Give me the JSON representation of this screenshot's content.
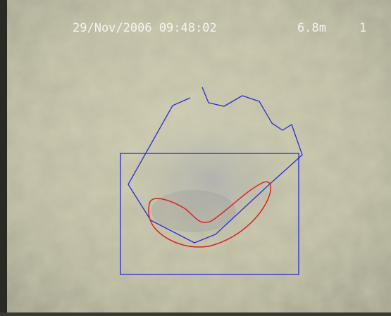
{
  "overlay": {
    "timestamp": "29/Nov/2006 09:48:02",
    "distance": "6.8m",
    "frame": "1"
  }
}
